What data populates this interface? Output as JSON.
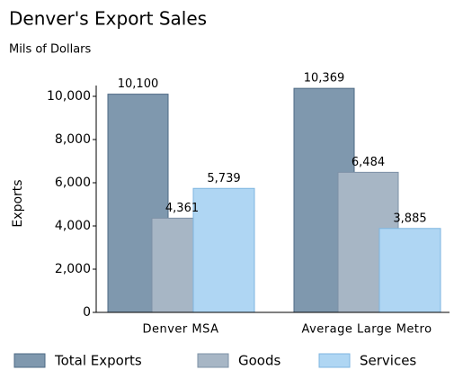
{
  "chart_data": {
    "type": "bar",
    "title": "Denver's Export Sales",
    "subtitle": "Mils of Dollars",
    "y_label": "Exports",
    "categories": [
      "Denver MSA",
      "Average Large Metro"
    ],
    "series": [
      {
        "name": "Total Exports",
        "color": "#7f98ae",
        "values": [
          10100,
          10369
        ],
        "value_labels": [
          "10,100",
          "10,369"
        ]
      },
      {
        "name": "Goods",
        "color": "#a7b6c5",
        "values": [
          4361,
          6484
        ],
        "value_labels": [
          "4,361",
          "6,484"
        ]
      },
      {
        "name": "Services",
        "color": "#afd6f3",
        "values": [
          5739,
          3885
        ],
        "value_labels": [
          "5,739",
          "3,885"
        ]
      }
    ],
    "ylim": [
      0,
      10000
    ],
    "yticks": [
      0,
      {
        "value": 2000,
        "label": "2,000"
      },
      {
        "value": 4000,
        "label": "4,000"
      },
      {
        "value": 6000,
        "label": "6,000"
      },
      {
        "value": 8000,
        "label": "8,000"
      },
      {
        "value": 10000,
        "label": "10,000"
      }
    ]
  }
}
